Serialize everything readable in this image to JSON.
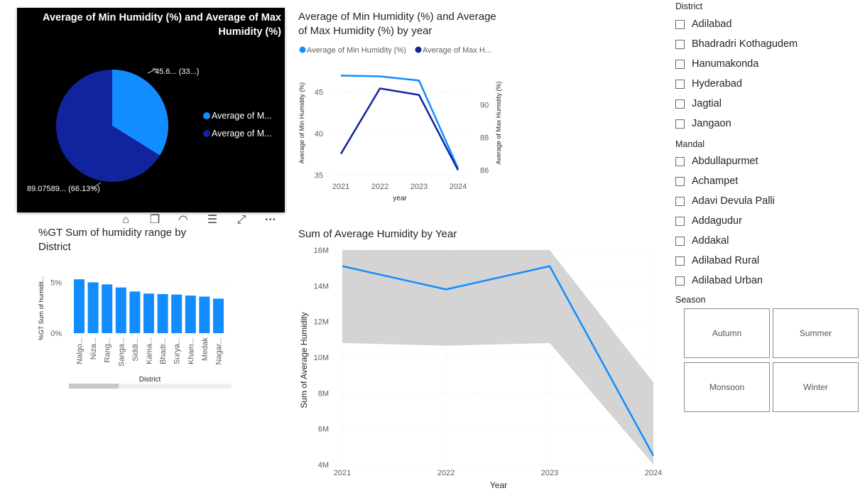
{
  "pie": {
    "title": "Average of Min Humidity (%) and Average of Max Humidity (%)",
    "label_min": "45.6... (33...)",
    "label_max": "89.07589... (66.13%)",
    "legend": [
      "Average of M...",
      "Average of M..."
    ],
    "colors": {
      "min": "#118DFF",
      "max": "#12239E"
    }
  },
  "line_chart": {
    "title": "Average of Min Humidity (%) and Average of Max Humidity (%) by year",
    "legend_min": "Average of Min Humidity (%)",
    "legend_max": "Average of Max H...",
    "y_left_label": "Average of Min Humidity (%)",
    "y_right_label": "Average of Max Humidity (%)",
    "x_label": "year",
    "years": [
      "2021",
      "2022",
      "2023",
      "2024"
    ],
    "y_left_ticks": [
      "45",
      "40",
      "35"
    ],
    "y_right_ticks": [
      "90",
      "88",
      "86"
    ]
  },
  "bar_chart": {
    "title": "%GT Sum of humidity range by District",
    "y_label": "%GT Sum of humidit...",
    "x_label": "District",
    "y_ticks": [
      "5%",
      "0%"
    ],
    "categories": [
      "Nalgo...",
      "Niza...",
      "Rang...",
      "Sanga...",
      "Siddi...",
      "Kama...",
      "Bhadr...",
      "Surya...",
      "Kham...",
      "Medak",
      "Nagar..."
    ]
  },
  "area_chart": {
    "title": "Sum of Average Humidity by Year",
    "y_label": "Sum of Average Humidity",
    "x_label": "Year",
    "y_ticks": [
      "16M",
      "14M",
      "12M",
      "10M",
      "8M",
      "6M",
      "4M"
    ],
    "x_ticks": [
      "2021",
      "2022",
      "2023",
      "2024"
    ]
  },
  "slicers": {
    "district": {
      "title": "District",
      "items": [
        "Adilabad",
        "Bhadradri Kothagudem",
        "Hanumakonda",
        "Hyderabad",
        "Jagtial",
        "Jangaon"
      ]
    },
    "mandal": {
      "title": "Mandal",
      "items": [
        "Abdullapurmet",
        "Achampet",
        "Adavi Devula Palli",
        "Addagudur",
        "Addakal",
        "Adilabad Rural",
        "Adilabad Urban"
      ]
    },
    "season": {
      "title": "Season",
      "items": [
        "Autumn",
        "Summer",
        "Monsoon",
        "Winter"
      ]
    }
  },
  "chart_data": [
    {
      "type": "pie",
      "title": "Average of Min Humidity (%) and Average of Max Humidity (%)",
      "categories": [
        "Average of Min Humidity (%)",
        "Average of Max Humidity (%)"
      ],
      "values": [
        45.6,
        89.07589
      ],
      "percent": [
        33.87,
        66.13
      ]
    },
    {
      "type": "line",
      "title": "Average of Min Humidity (%) and Average of Max Humidity (%) by year",
      "x": [
        2021,
        2022,
        2023,
        2024
      ],
      "series": [
        {
          "name": "Average of Min Humidity (%)",
          "axis": "left",
          "values": [
            47.0,
            46.9,
            46.4,
            35.8
          ]
        },
        {
          "name": "Average of Max Humidity (%)",
          "axis": "right",
          "values": [
            87.0,
            91.0,
            90.6,
            86.0
          ]
        }
      ],
      "ylim_left": [
        34,
        49
      ],
      "ylim_right": [
        85.2,
        92.8
      ],
      "xlabel": "year",
      "ylabel": "Average of Min Humidity (%)",
      "ylabel_right": "Average of Max Humidity (%)"
    },
    {
      "type": "bar",
      "title": "%GT Sum of humidity range by District",
      "categories": [
        "Nalgo...",
        "Niza...",
        "Rang...",
        "Sanga...",
        "Siddi...",
        "Kama...",
        "Bhadr...",
        "Surya...",
        "Kham...",
        "Medak",
        "Nagar..."
      ],
      "values": [
        5.3,
        5.0,
        4.8,
        4.5,
        4.1,
        3.9,
        3.85,
        3.8,
        3.7,
        3.6,
        3.4
      ],
      "ylim": [
        0,
        6.5
      ],
      "xlabel": "District",
      "ylabel": "%GT Sum of humidit..."
    },
    {
      "type": "area",
      "title": "Sum of Average Humidity by Year",
      "x": [
        2021,
        2022,
        2023,
        2024
      ],
      "series": [
        {
          "name": "Sum of Average Humidity",
          "values": [
            15.1,
            13.8,
            15.1,
            4.5
          ]
        },
        {
          "name": "Band upper",
          "values": [
            16.0,
            16.0,
            16.0,
            8.6
          ]
        },
        {
          "name": "Band lower",
          "values": [
            10.8,
            10.65,
            10.8,
            4.0
          ]
        }
      ],
      "ylim": [
        4,
        16
      ],
      "xlabel": "Year",
      "ylabel": "Sum of Average Humidity"
    }
  ]
}
